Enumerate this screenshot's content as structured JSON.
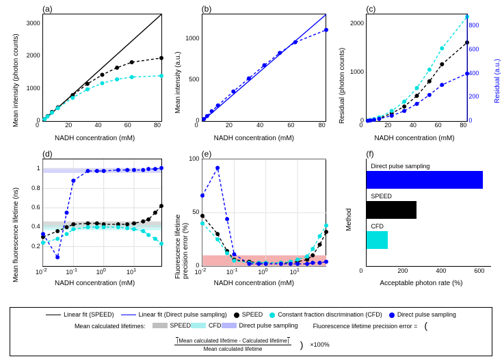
{
  "colors": {
    "speed": "#000000",
    "cfd": "#00e0e0",
    "dps": "#0000ff",
    "band_speed": "#bfbfbf",
    "band_cfd": "#a8f0f0",
    "band_dps": "#b8b8ff",
    "err_band": "#f5b0b0",
    "grid": "#e0e0e0",
    "axis": "#000000"
  },
  "panels": {
    "a": {
      "label": "(a)",
      "xlabel": "NADH concentration (mM)",
      "ylabel": "Mean intensity (photon counts)",
      "xlim": [
        0,
        80
      ],
      "ylim": [
        0,
        3300
      ],
      "xticks": [
        0,
        20,
        40,
        60,
        80
      ],
      "yticks": [
        0,
        1000,
        2000,
        3000
      ],
      "speed": [
        [
          1,
          60
        ],
        [
          3,
          150
        ],
        [
          6,
          280
        ],
        [
          10,
          420
        ],
        [
          20,
          800
        ],
        [
          30,
          1150
        ],
        [
          40,
          1430
        ],
        [
          50,
          1650
        ],
        [
          60,
          1820
        ],
        [
          80,
          1950
        ]
      ],
      "cfd": [
        [
          1,
          55
        ],
        [
          3,
          140
        ],
        [
          6,
          260
        ],
        [
          10,
          400
        ],
        [
          20,
          720
        ],
        [
          30,
          980
        ],
        [
          40,
          1170
        ],
        [
          50,
          1290
        ],
        [
          60,
          1360
        ],
        [
          80,
          1400
        ]
      ],
      "speed_fit": [
        [
          0,
          0
        ],
        [
          80,
          3300
        ]
      ]
    },
    "b": {
      "label": "(b)",
      "xlabel": "NADH concentration (mM)",
      "ylabel": "Mean intensity (a.u.)",
      "xlim": [
        0,
        80
      ],
      "ylim": [
        0,
        1300
      ],
      "xticks": [
        0,
        20,
        40,
        60,
        80
      ],
      "yticks": [
        0,
        500,
        1000
      ],
      "dps": [
        [
          1,
          25
        ],
        [
          3,
          60
        ],
        [
          6,
          120
        ],
        [
          10,
          190
        ],
        [
          20,
          360
        ],
        [
          30,
          520
        ],
        [
          40,
          680
        ],
        [
          50,
          830
        ],
        [
          60,
          960
        ],
        [
          80,
          1110
        ]
      ],
      "dps_fit": [
        [
          0,
          0
        ],
        [
          80,
          1300
        ]
      ]
    },
    "c": {
      "label": "(c)",
      "xlabel": "NADH concentration (mM)",
      "ylabel": "Residual (photon counts)",
      "ylabel2": "Residual (a.u.)",
      "xlim": [
        0,
        80
      ],
      "ylim": [
        0,
        2200
      ],
      "ylim2": [
        0,
        900
      ],
      "xticks": [
        0,
        20,
        40,
        60,
        80
      ],
      "yticks": [
        0,
        1000,
        2000
      ],
      "yticks2": [
        0,
        200,
        400,
        600,
        800
      ],
      "speed": [
        [
          1,
          5
        ],
        [
          3,
          15
        ],
        [
          6,
          30
        ],
        [
          10,
          55
        ],
        [
          20,
          160
        ],
        [
          30,
          300
        ],
        [
          40,
          520
        ],
        [
          50,
          820
        ],
        [
          60,
          1170
        ],
        [
          80,
          1620
        ]
      ],
      "cfd": [
        [
          1,
          8
        ],
        [
          3,
          20
        ],
        [
          6,
          40
        ],
        [
          10,
          75
        ],
        [
          20,
          210
        ],
        [
          30,
          400
        ],
        [
          40,
          680
        ],
        [
          50,
          1060
        ],
        [
          60,
          1500
        ],
        [
          80,
          2150
        ]
      ],
      "dps": [
        [
          1,
          2
        ],
        [
          3,
          5
        ],
        [
          6,
          10
        ],
        [
          10,
          18
        ],
        [
          20,
          45
        ],
        [
          30,
          85
        ],
        [
          40,
          145
        ],
        [
          50,
          220
        ],
        [
          60,
          305
        ],
        [
          80,
          400
        ]
      ]
    },
    "d": {
      "label": "(d)",
      "xlabel": "NADH concentration (mM)",
      "ylabel": "Mean fluorescence lifetime (ns)",
      "xlim": [
        0.01,
        80
      ],
      "ylim": [
        0,
        1.1
      ],
      "xticks_log": [
        "10^-2",
        "10^-1",
        "10^0",
        "10^1"
      ],
      "yticks": [
        0.2,
        0.4,
        0.6,
        0.8,
        1
      ],
      "bands": {
        "speed": [
          0.4,
          0.46
        ],
        "cfd": [
          0.37,
          0.42
        ],
        "dps": [
          0.96,
          1.01
        ]
      },
      "speed": [
        [
          0.01,
          0.3
        ],
        [
          0.03,
          0.36
        ],
        [
          0.06,
          0.4
        ],
        [
          0.1,
          0.43
        ],
        [
          0.3,
          0.44
        ],
        [
          0.6,
          0.44
        ],
        [
          1,
          0.43
        ],
        [
          3,
          0.43
        ],
        [
          6,
          0.43
        ],
        [
          10,
          0.44
        ],
        [
          20,
          0.46
        ],
        [
          30,
          0.48
        ],
        [
          50,
          0.55
        ],
        [
          80,
          0.62
        ]
      ],
      "cfd": [
        [
          0.01,
          0.24
        ],
        [
          0.03,
          0.28
        ],
        [
          0.06,
          0.33
        ],
        [
          0.1,
          0.38
        ],
        [
          0.3,
          0.4
        ],
        [
          0.6,
          0.4
        ],
        [
          1,
          0.4
        ],
        [
          3,
          0.4
        ],
        [
          6,
          0.39
        ],
        [
          10,
          0.38
        ],
        [
          20,
          0.36
        ],
        [
          30,
          0.32
        ],
        [
          50,
          0.28
        ],
        [
          80,
          0.23
        ]
      ],
      "dps": [
        [
          0.01,
          0.33
        ],
        [
          0.03,
          0.09
        ],
        [
          0.06,
          0.55
        ],
        [
          0.1,
          0.88
        ],
        [
          0.3,
          0.98
        ],
        [
          0.6,
          0.98
        ],
        [
          1,
          0.98
        ],
        [
          3,
          0.99
        ],
        [
          6,
          0.99
        ],
        [
          10,
          0.99
        ],
        [
          20,
          0.99
        ],
        [
          30,
          1.0
        ],
        [
          50,
          1.0
        ],
        [
          80,
          1.01
        ]
      ]
    },
    "e": {
      "label": "(e)",
      "xlabel": "NADH concentration (mM)",
      "ylabel": "Fluorescence lifetime\nprecision error (%)",
      "xlim": [
        0.01,
        80
      ],
      "ylim": [
        0,
        100
      ],
      "xticks_log": [
        "10^-2",
        "10^-1",
        "10^0",
        "10^1"
      ],
      "yticks": [
        0,
        50,
        100
      ],
      "err_band": [
        0,
        10
      ],
      "speed": [
        [
          0.01,
          47
        ],
        [
          0.03,
          30
        ],
        [
          0.06,
          14
        ],
        [
          0.1,
          6
        ],
        [
          0.3,
          4
        ],
        [
          0.6,
          3
        ],
        [
          1,
          3
        ],
        [
          3,
          3
        ],
        [
          6,
          3
        ],
        [
          10,
          4
        ],
        [
          20,
          6
        ],
        [
          30,
          10
        ],
        [
          50,
          20
        ],
        [
          80,
          32
        ]
      ],
      "cfd": [
        [
          0.01,
          40
        ],
        [
          0.03,
          25
        ],
        [
          0.06,
          12
        ],
        [
          0.1,
          5
        ],
        [
          0.3,
          3
        ],
        [
          0.6,
          3
        ],
        [
          1,
          3
        ],
        [
          3,
          3
        ],
        [
          6,
          4
        ],
        [
          10,
          6
        ],
        [
          20,
          9
        ],
        [
          30,
          16
        ],
        [
          50,
          28
        ],
        [
          80,
          38
        ]
      ],
      "dps": [
        [
          0.01,
          66
        ],
        [
          0.03,
          92
        ],
        [
          0.06,
          44
        ],
        [
          0.1,
          11
        ],
        [
          0.3,
          2
        ],
        [
          0.6,
          2
        ],
        [
          1,
          2
        ],
        [
          3,
          2
        ],
        [
          6,
          2
        ],
        [
          10,
          2
        ],
        [
          20,
          2
        ],
        [
          30,
          3
        ],
        [
          50,
          3
        ],
        [
          80,
          4
        ]
      ]
    },
    "f": {
      "label": "(f)",
      "xlabel": "Acceptable photon rate (%)",
      "ylabel": "Method",
      "xlim": [
        0,
        650
      ],
      "xticks": [
        0,
        200,
        400,
        600
      ],
      "bars": [
        {
          "label": "Direct pulse sampling",
          "value": 605,
          "color": "dps"
        },
        {
          "label": "SPEED",
          "value": 260,
          "color": "speed"
        },
        {
          "label": "CFD",
          "value": 110,
          "color": "cfd"
        }
      ]
    }
  },
  "legend": {
    "row1": [
      {
        "t": "line",
        "c": "speed",
        "label": "Linear fit (SPEED)"
      },
      {
        "t": "line",
        "c": "dps",
        "label": "Linear fit (Direct pulse sampling)"
      },
      {
        "t": "dot",
        "c": "speed",
        "label": "SPEED"
      },
      {
        "t": "dot",
        "c": "cfd",
        "label": "Constant fraction discrimination (CFD)"
      },
      {
        "t": "dot",
        "c": "dps",
        "label": "Direct pulse sampling"
      }
    ],
    "row2_prefix": "Mean calculated lifetimes:",
    "row2": [
      {
        "t": "band",
        "c": "band_speed",
        "label": "SPEED"
      },
      {
        "t": "band",
        "c": "band_cfd",
        "label": "CFD"
      },
      {
        "t": "band",
        "c": "band_dps",
        "label": "Direct pulse sampling"
      }
    ],
    "formula_prefix": "Fluorescence lifetime precision error =",
    "formula_num": "Mean calculated lifetime - Calculated lifetime",
    "formula_den": "Mean calculated lifetime",
    "formula_suffix": "×100%"
  }
}
